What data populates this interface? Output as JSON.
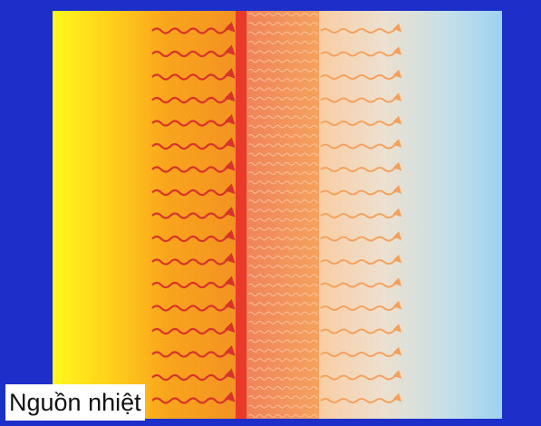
{
  "labels": {
    "heat_source": "Nguồn nhiệt"
  },
  "colors": {
    "frame_blue": "#1d2fc8",
    "heat_source_yellow": "#fff21a",
    "hot_orange": "#f7931e",
    "hot_wall_red": "#e8392b",
    "glass_orange": "#f39a5a",
    "warm_pale": "#f8d7b4",
    "cool_blue": "#9fd3f0",
    "strong_arrow": "#d8332a",
    "weak_arrow": "#f5a05a"
  },
  "icons": {
    "incoming_rays": "wavy-arrow-icon",
    "outgoing_rays": "wavy-arrow-icon"
  }
}
